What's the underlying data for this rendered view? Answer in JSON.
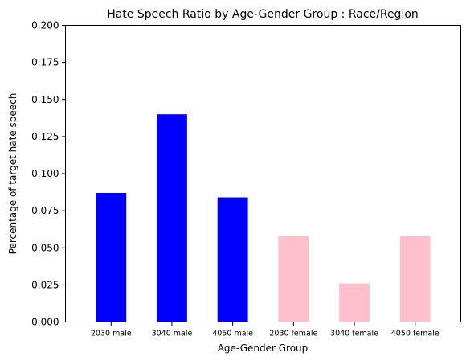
{
  "chart_data": {
    "type": "bar",
    "title": "Hate Speech Ratio by Age-Gender Group : Race/Region",
    "xlabel": "Age-Gender Group",
    "ylabel": "Percentage of target hate speech",
    "categories": [
      "2030 male",
      "3040 male",
      "4050 male",
      "2030 female",
      "3040 female",
      "4050 female"
    ],
    "values": [
      0.087,
      0.14,
      0.084,
      0.058,
      0.026,
      0.058
    ],
    "bar_colors": [
      "#0000ff",
      "#0000ff",
      "#0000ff",
      "#ffc0cb",
      "#ffc0cb",
      "#ffc0cb"
    ],
    "ylim": [
      0,
      0.2
    ],
    "yticks": [
      0.0,
      0.025,
      0.05,
      0.075,
      0.1,
      0.125,
      0.15,
      0.175,
      0.2
    ],
    "ytick_labels": [
      "0.000",
      "0.025",
      "0.050",
      "0.075",
      "0.100",
      "0.125",
      "0.150",
      "0.175",
      "0.200"
    ],
    "grid": false,
    "legend": "none"
  }
}
